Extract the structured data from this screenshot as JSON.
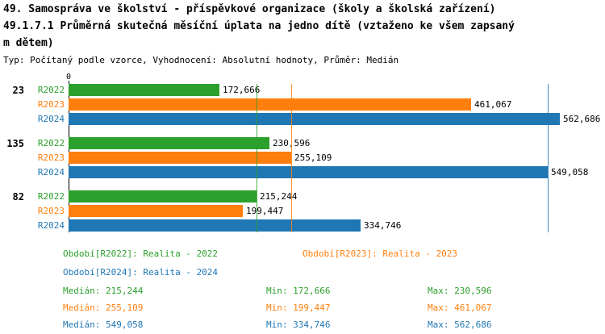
{
  "title": {
    "line1": "49. Samospráva ve školství - příspěvkové organizace (školy a školská zařízení)",
    "line2a": "49.1.7.1 Průměrná skutečná měsíční úplata na jedno dítě (vztaženo ke všem zapsaný",
    "line2b": "m dětem)",
    "line3": "Typ: Počítaný podle vzorce, Vyhodnocení: Absolutní hodnoty, Průměr: Medián"
  },
  "chart_data": {
    "type": "bar",
    "orientation": "horizontal",
    "title": "49.1.7.1 Průměrná skutečná měsíční úplata na jedno dítě (vztaženo ke všem zapsaným dětem)",
    "axis_origin_label": "0",
    "categories": [
      "23",
      "135",
      "82"
    ],
    "series": [
      {
        "name": "R2022",
        "color": "#2ca02c",
        "values": [
          172666,
          230596,
          215244
        ],
        "labels": [
          "172,666",
          "230,596",
          "215,244"
        ]
      },
      {
        "name": "R2023",
        "color": "#ff7f0e",
        "values": [
          461067,
          255109,
          199447
        ],
        "labels": [
          "461,067",
          "255,109",
          "199,447"
        ]
      },
      {
        "name": "R2024",
        "color": "#1f77b4",
        "values": [
          562686,
          549058,
          334746
        ],
        "labels": [
          "562,686",
          "549,058",
          "334,746"
        ]
      }
    ],
    "xlim": [
      0,
      610000
    ],
    "grid": false,
    "legend_position": "bottom",
    "median_lines": [
      {
        "series": "R2022",
        "value": 215244
      },
      {
        "series": "R2023",
        "value": 255109
      },
      {
        "series": "R2024",
        "value": 549058
      }
    ]
  },
  "legend": {
    "r2022": "Období[R2022]: Realita - 2022",
    "r2023": "Období[R2023]: Realita - 2023",
    "r2024": "Období[R2024]: Realita - 2024"
  },
  "stats": {
    "r2022": {
      "median": "Medián: 215,244",
      "min": "Min: 172,666",
      "max": "Max: 230,596"
    },
    "r2023": {
      "median": "Medián: 255,109",
      "min": "Min: 199,447",
      "max": "Max: 461,067"
    },
    "r2024": {
      "median": "Medián: 549,058",
      "min": "Min: 334,746",
      "max": "Max: 562,686"
    }
  }
}
